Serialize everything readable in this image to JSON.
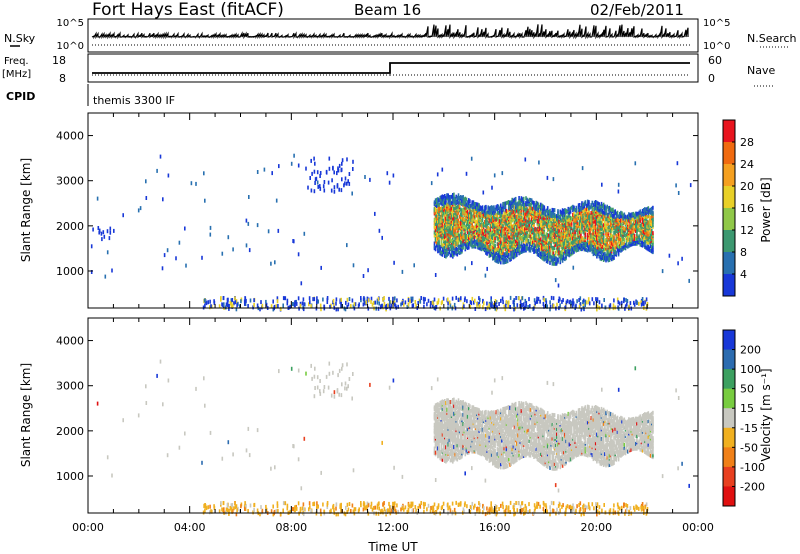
{
  "header": {
    "title": "Fort Hays East (fitACF)",
    "beam": "Beam 16",
    "date": "02/Feb/2011"
  },
  "panels": {
    "nsky": {
      "label": "N.Sky",
      "left_ticks": [
        "10^5",
        "10^0"
      ],
      "right_label": "N.Search",
      "right_ticks": [
        "10^5",
        "10^0"
      ]
    },
    "freq": {
      "label_line1": "Freq.",
      "label_line2": "[MHz]",
      "left_ticks": [
        "18",
        "8"
      ],
      "right_label": "Nave",
      "right_ticks": [
        "60",
        "0"
      ]
    },
    "cpid": {
      "label": "CPID",
      "text": "themis 3300 IF"
    }
  },
  "colorbars": {
    "power": {
      "label": "Power [dB]",
      "ticks": [
        "28",
        "24",
        "20",
        "16",
        "12",
        "8",
        "4"
      ],
      "colors": [
        "#e8141e",
        "#f06a10",
        "#f5a020",
        "#e8d028",
        "#90c848",
        "#3c9870",
        "#2870b0",
        "#1838d8"
      ]
    },
    "velocity": {
      "label": "Velocity [m s⁻¹]",
      "ticks": [
        "200",
        "100",
        "50",
        "15",
        "-15",
        "-50",
        "-100",
        "-200"
      ],
      "colors": [
        "#1838d8",
        "#2c6cb0",
        "#3ca060",
        "#78cc40",
        "#c8c8c0",
        "#f0b020",
        "#f08018",
        "#e84020",
        "#e01010"
      ]
    }
  },
  "gray_color": "#c8c8c0",
  "chart_data": [
    {
      "type": "heatmap",
      "title": "",
      "series_label": "Power [dB]",
      "xlabel": "",
      "ylabel": "Slant Range [km]",
      "xlim": [
        "00:00",
        "24:00"
      ],
      "ylim": [
        180,
        4500
      ],
      "yticks": [
        1000,
        2000,
        3000,
        4000
      ],
      "features": [
        {
          "desc": "main echo band",
          "x_hours": [
            13.5,
            22.2
          ],
          "y_km": [
            1450,
            2700
          ],
          "power_dB": [
            4,
            28
          ]
        },
        {
          "desc": "near-range scatter",
          "x_hours": [
            5,
            22
          ],
          "y_km": [
            180,
            450
          ],
          "power_dB": [
            4,
            20
          ]
        }
      ]
    },
    {
      "type": "heatmap",
      "title": "",
      "series_label": "Velocity [m s⁻¹]",
      "xlabel": "Time UT",
      "ylabel": "Slant Range [km]",
      "xlim": [
        "00:00",
        "24:00"
      ],
      "ylim": [
        180,
        4500
      ],
      "yticks": [
        1000,
        2000,
        3000,
        4000
      ],
      "xticks": [
        "00:00",
        "04:00",
        "08:00",
        "12:00",
        "16:00",
        "20:00",
        "00:00"
      ],
      "features": [
        {
          "desc": "ground scatter band",
          "x_hours": [
            13.5,
            22.2
          ],
          "y_km": [
            1450,
            2700
          ],
          "velocity": [
            -15,
            15
          ]
        },
        {
          "desc": "near-range scatter",
          "x_hours": [
            5,
            22
          ],
          "y_km": [
            180,
            450
          ],
          "velocity": [
            -100,
            -15
          ]
        }
      ]
    }
  ]
}
